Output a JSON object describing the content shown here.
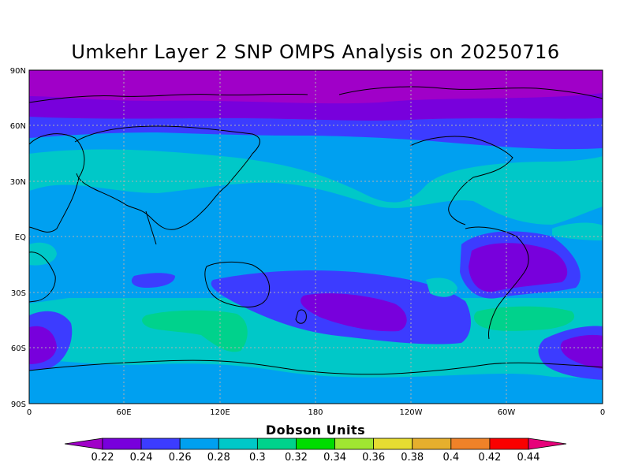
{
  "title": "Umkehr Layer 2 SNP OMPS Analysis on 20250716",
  "colorbar": {
    "title": "Dobson Units",
    "ticks": [
      "0.22",
      "0.24",
      "0.26",
      "0.28",
      "0.3",
      "0.32",
      "0.34",
      "0.36",
      "0.38",
      "0.4",
      "0.42",
      "0.44"
    ],
    "colors": [
      "#a000c8",
      "#7800dc",
      "#3c3cff",
      "#00a0f0",
      "#00c8c8",
      "#00d28c",
      "#00dc00",
      "#a0e632",
      "#e6dc32",
      "#e6af2d",
      "#f08228",
      "#fa0000",
      "#e6007a"
    ]
  },
  "axes": {
    "lat_labels": [
      "90N",
      "60N",
      "30N",
      "EQ",
      "30S",
      "60S",
      "90S"
    ],
    "lon_labels": [
      "0",
      "60E",
      "120E",
      "180",
      "120W",
      "60W",
      "0"
    ]
  },
  "chart_data": {
    "type": "heatmap",
    "title": "Umkehr Layer 2 SNP OMPS Analysis on 20250716",
    "variable": "Dobson Units",
    "x_range": [
      0,
      360
    ],
    "y_range": [
      -90,
      90
    ],
    "contour_levels": [
      0.22,
      0.24,
      0.26,
      0.28,
      0.3,
      0.32,
      0.34,
      0.36,
      0.38,
      0.4,
      0.42,
      0.44
    ],
    "field_features": [
      {
        "region": "north polar cap 70N-90N",
        "value_range": [
          0.22,
          0.24
        ]
      },
      {
        "region": "north mid-latitude band 50N-65N",
        "value_range": [
          0.24,
          0.26
        ]
      },
      {
        "region": "subtropical band 20N-40N",
        "value_range": [
          0.28,
          0.3
        ]
      },
      {
        "region": "tropics",
        "value_range": [
          0.26,
          0.28
        ]
      },
      {
        "region": "central South America 5S-30S",
        "value_range": [
          0.22,
          0.24
        ]
      },
      {
        "region": "South Pacific east of New Zealand 35S-50S",
        "value_range": [
          0.22,
          0.24
        ]
      },
      {
        "region": "south Indian Ocean 45S-55S",
        "value_range": [
          0.3,
          0.32
        ]
      },
      {
        "region": "Antarctic coast 65S-80S",
        "value_range": [
          0.26,
          0.28
        ]
      }
    ]
  }
}
